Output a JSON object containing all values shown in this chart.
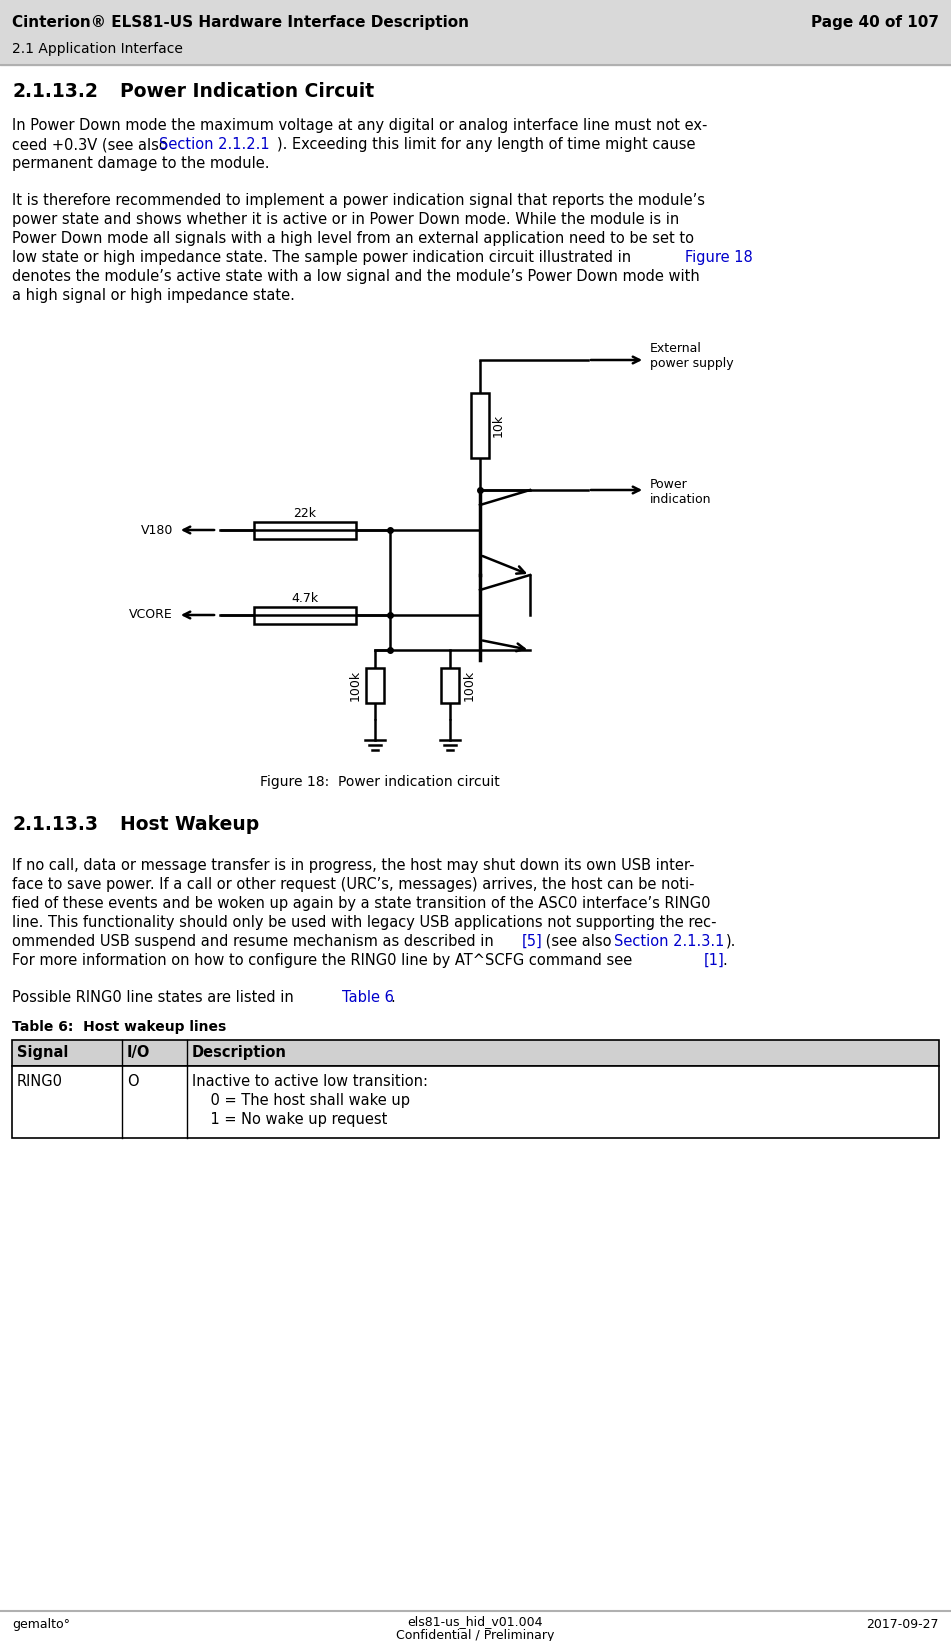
{
  "header_title": "Cinterion® ELS81-US Hardware Interface Description",
  "header_page": "Page 40 of 107",
  "header_sub": "2.1 Application Interface",
  "footer_left": "gemalto°",
  "footer_center1": "els81-us_hid_v01.004",
  "footer_center2": "Confidential / Preliminary",
  "footer_right": "2017-09-27",
  "fig_caption": "Figure 18:  Power indication circuit",
  "table_caption": "Table 6:  Host wakeup lines",
  "table_headers": [
    "Signal",
    "I/O",
    "Description"
  ],
  "table_row": [
    "RING0",
    "O",
    "Inactive to active low transition:\n    0 = The host shall wake up\n    1 = No wake up request"
  ],
  "bg_color": "#ffffff",
  "text_color": "#000000",
  "link_color": "#0000cc",
  "header_bg": "#d9d9d9",
  "table_header_bg": "#d0d0d0"
}
